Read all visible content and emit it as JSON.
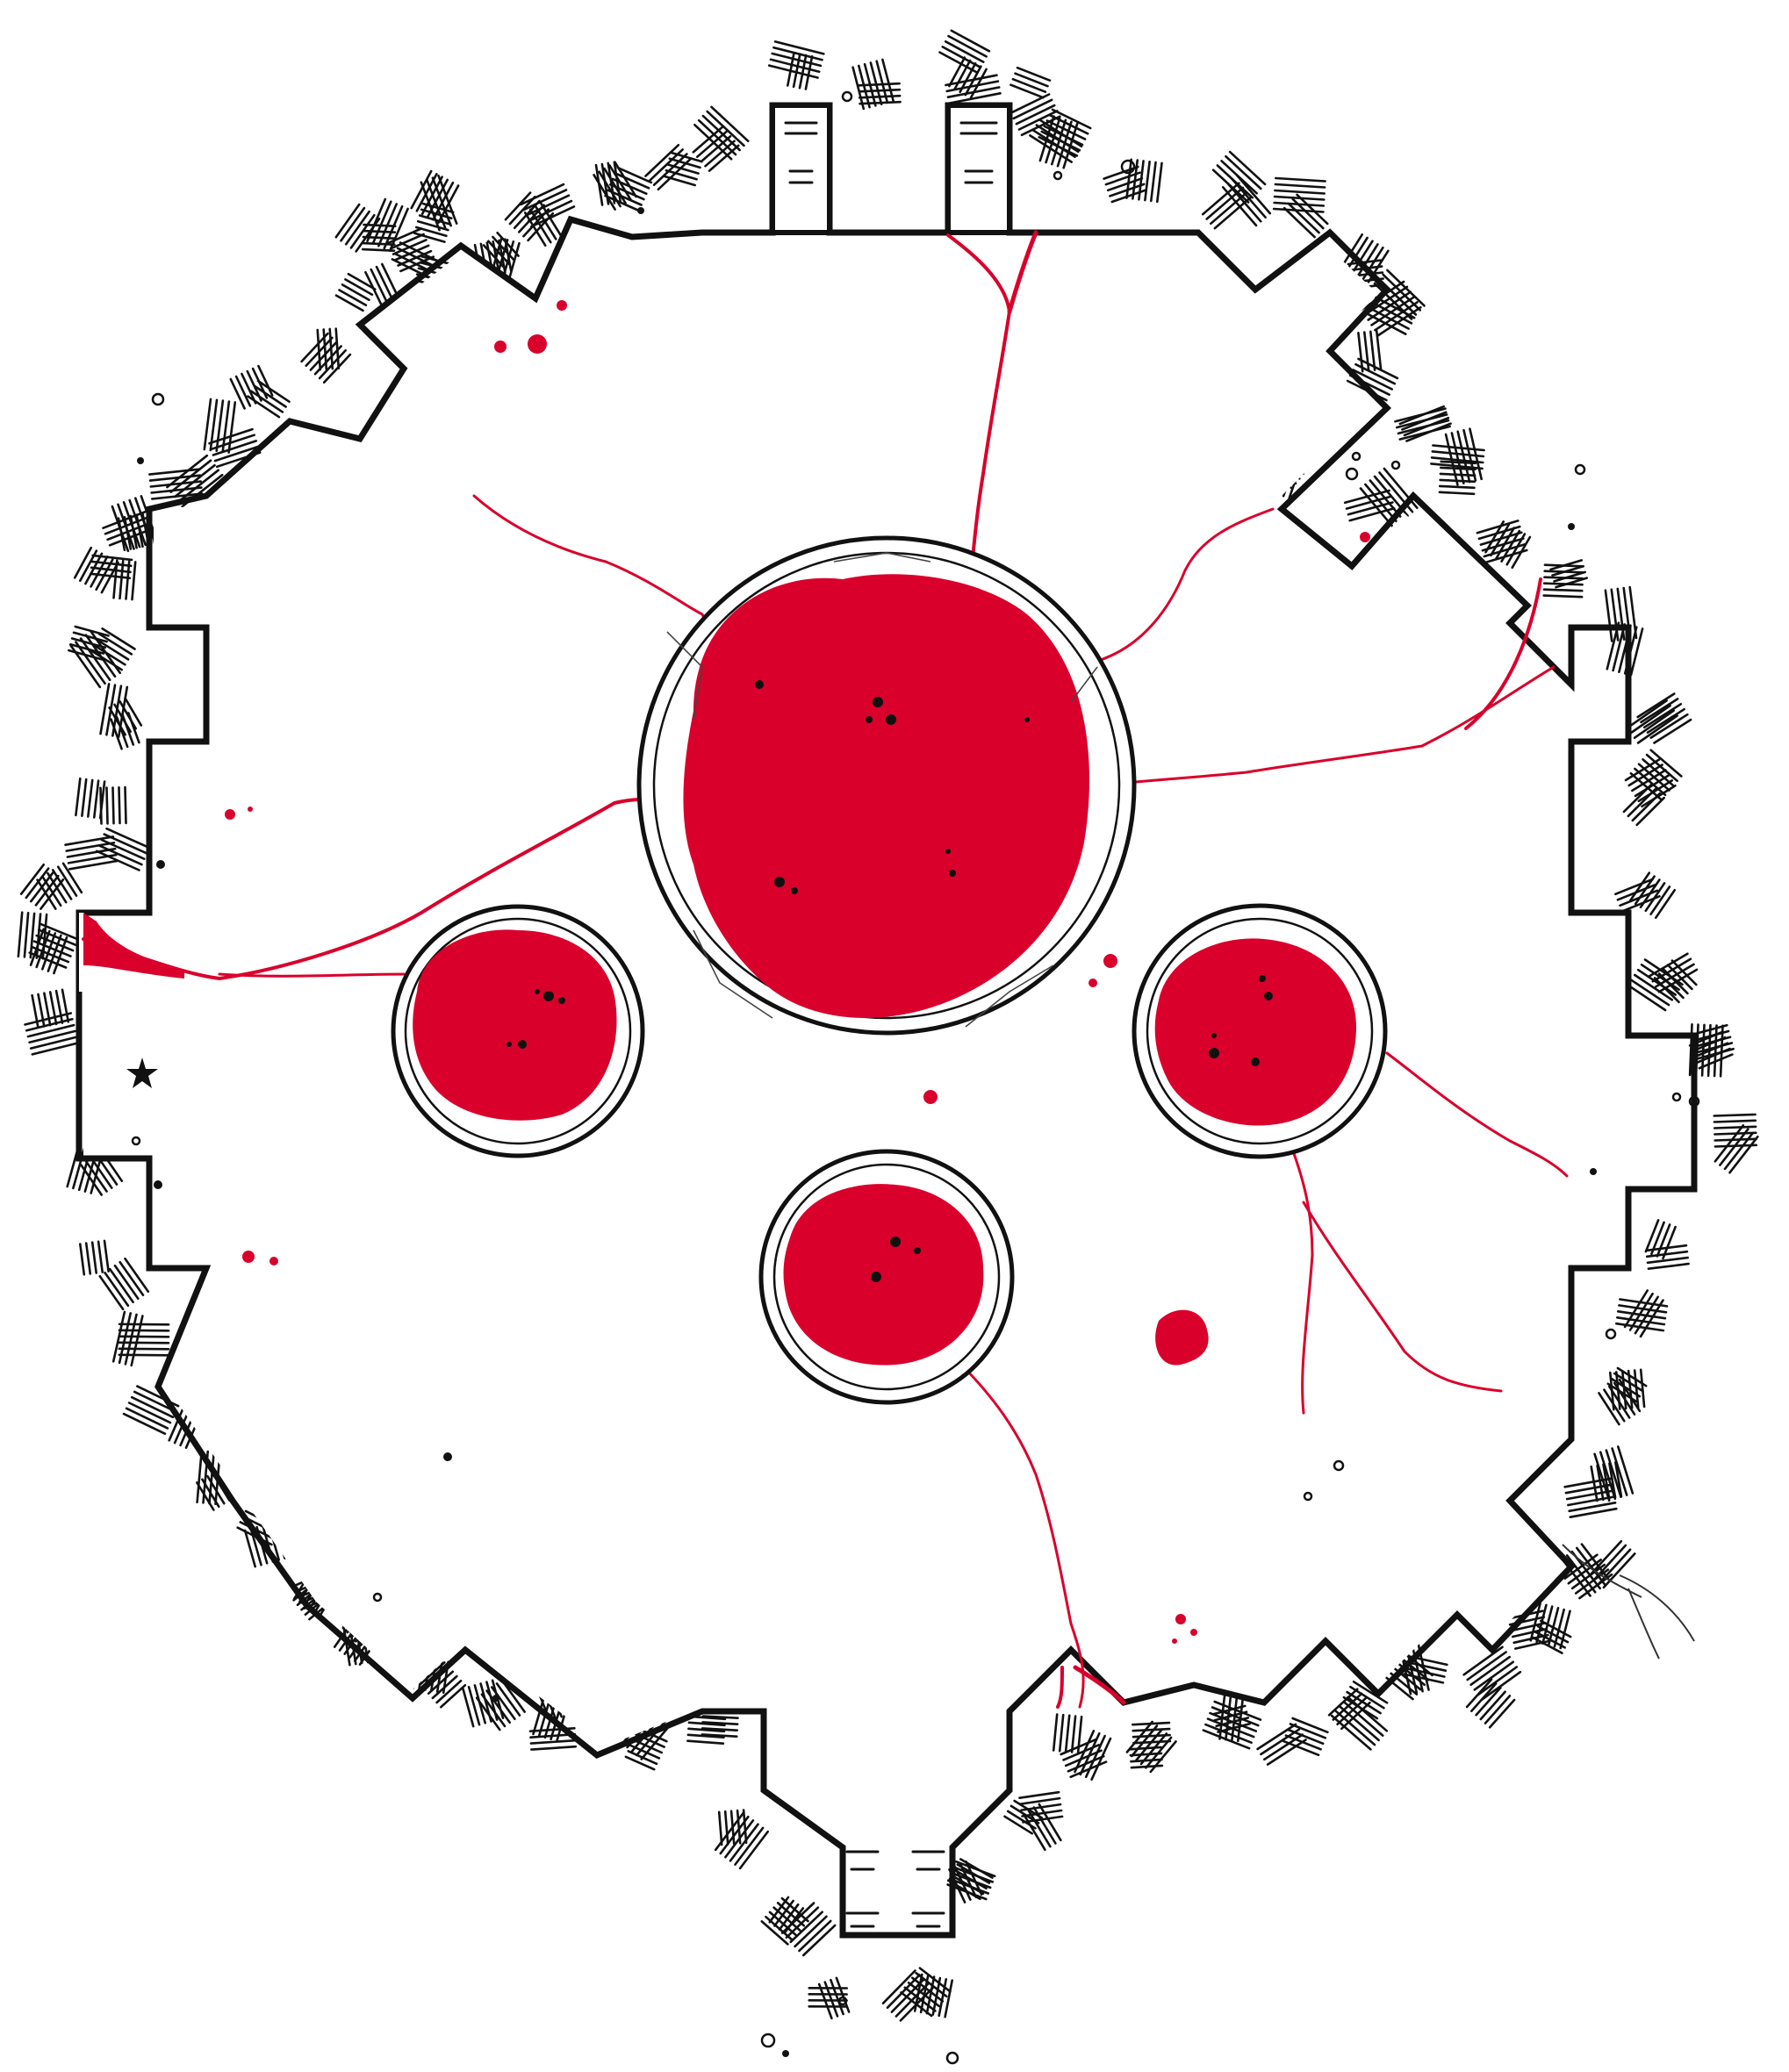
{
  "map": {
    "colors": {
      "blood": "#d9002b",
      "ink": "#111111",
      "floor": "#ffffff"
    },
    "features": {
      "pools": [
        {
          "name": "central-blood-pool",
          "size": "large"
        },
        {
          "name": "west-blood-pool",
          "size": "small"
        },
        {
          "name": "east-blood-pool",
          "size": "small"
        },
        {
          "name": "south-blood-pool",
          "size": "small"
        }
      ],
      "exits": [
        {
          "name": "north-west-stairs"
        },
        {
          "name": "north-east-stairs"
        },
        {
          "name": "west-passage"
        },
        {
          "name": "south-stairs"
        }
      ],
      "icons": [
        "stairs-icon",
        "rubble-icon",
        "blood-splatter-icon",
        "star-glyph-icon"
      ]
    }
  }
}
